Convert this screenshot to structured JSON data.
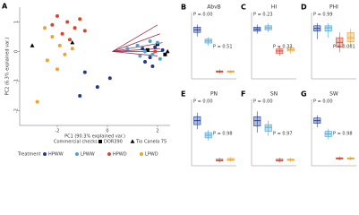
{
  "chart_data": [
    {
      "type": "scatter",
      "label": "A",
      "xlabel": "PC1 (90.3% explained var.)",
      "ylabel": "PC2 (6.3% explained var.)",
      "xlim": [
        -3.5,
        2.5
      ],
      "ylim": [
        -2.5,
        1.5
      ],
      "xticks": [
        -2,
        0,
        2
      ],
      "yticks": [
        -2,
        -1,
        0,
        1
      ],
      "loadings": {
        "color": "#9b2a4a",
        "x": [
          2.0,
          2.1,
          2.2,
          2.1,
          2.2,
          2.0
        ],
        "y": [
          0.9,
          0.6,
          0.3,
          0.1,
          0.0,
          -0.15
        ]
      },
      "series_groups": [
        {
          "title": "Commercial checks",
          "series": [
            {
              "name": "DOR390",
              "color": "#000000",
              "marker": "square",
              "x": [
                1.6,
                2.3,
                2.0
              ],
              "values": [
                0.05,
                -0.1,
                0.25
              ]
            },
            {
              "name": "Tio Canela 75",
              "color": "#000000",
              "marker": "triangle",
              "x": [
                -3.0,
                -1.4,
                2.4
              ],
              "values": [
                0.2,
                0.3,
                0.0
              ]
            }
          ]
        },
        {
          "title": "Treatment",
          "series": [
            {
              "name": "HPWW",
              "color": "#1f3b8f",
              "marker": "circle",
              "x": [
                1.4,
                1.7,
                1.9,
                2.2,
                1.5,
                -0.4,
                -0.9,
                0.1,
                -1.1,
                1.8
              ],
              "values": [
                0.1,
                -0.2,
                0.15,
                0.05,
                -0.35,
                -1.2,
                -0.7,
                -0.9,
                -1.5,
                -0.5
              ]
            },
            {
              "name": "LPWW",
              "color": "#4aa3d4",
              "marker": "circle",
              "x": [
                1.2,
                1.5,
                1.8,
                2.0,
                1.3,
                0.8,
                1.7,
                2.1
              ],
              "values": [
                0.2,
                0.0,
                -0.1,
                0.3,
                -0.15,
                0.1,
                0.35,
                -0.25
              ]
            },
            {
              "name": "HPWD",
              "color": "#d8452b",
              "marker": "circle",
              "x": [
                -2.0,
                -1.6,
                -1.3,
                -1.8,
                -1.1,
                -2.2,
                -1.5,
                -0.9,
                1.9
              ],
              "values": [
                1.2,
                1.0,
                0.8,
                0.6,
                1.1,
                0.9,
                0.4,
                0.7,
                0.0
              ]
            },
            {
              "name": "LPWD",
              "color": "#f0a12e",
              "marker": "circle",
              "x": [
                -2.5,
                -2.2,
                -1.9,
                -1.7,
                -2.4,
                -1.4,
                -2.0,
                -2.8
              ],
              "values": [
                0.8,
                0.5,
                0.2,
                -0.1,
                -0.3,
                0.1,
                -0.6,
                -1.7
              ]
            }
          ]
        }
      ]
    },
    {
      "type": "box",
      "label": "B",
      "title": "AbvB",
      "ylim": [
        0,
        100
      ],
      "annotations": [
        "P = 0.00",
        "P = 0.51"
      ],
      "boxes": [
        {
          "color": "#1f3b8f",
          "stats": [
            64,
            70,
            74,
            78,
            82
          ]
        },
        {
          "color": "#4aa3d4",
          "stats": [
            50,
            54,
            57,
            60,
            63
          ]
        },
        {
          "color": "#d8452b",
          "stats": [
            8,
            10,
            11,
            12,
            14
          ]
        },
        {
          "color": "#f0a12e",
          "stats": [
            8,
            10,
            11,
            12,
            13
          ]
        }
      ]
    },
    {
      "type": "box",
      "label": "C",
      "title": "HI",
      "ylim": [
        0,
        100
      ],
      "annotations": [
        "P = 0.23",
        "P = 0.33"
      ],
      "boxes": [
        {
          "color": "#1f3b8f",
          "stats": [
            68,
            72,
            75,
            78,
            82
          ]
        },
        {
          "color": "#4aa3d4",
          "stats": [
            70,
            74,
            77,
            80,
            84
          ]
        },
        {
          "color": "#d8452b",
          "stats": [
            35,
            38,
            42,
            45,
            48
          ]
        },
        {
          "color": "#f0a12e",
          "stats": [
            38,
            42,
            44,
            47,
            50
          ]
        }
      ]
    },
    {
      "type": "box",
      "label": "D",
      "title": "PHI",
      "ylim": [
        0,
        100
      ],
      "annotations": [
        "P = 0.99",
        "P = 0.001"
      ],
      "boxes": [
        {
          "color": "#1f3b8f",
          "stats": [
            60,
            72,
            76,
            80,
            84
          ]
        },
        {
          "color": "#4aa3d4",
          "stats": [
            62,
            72,
            77,
            80,
            84
          ]
        },
        {
          "color": "#d8452b",
          "stats": [
            40,
            48,
            55,
            62,
            70
          ]
        },
        {
          "color": "#f0a12e",
          "stats": [
            48,
            56,
            62,
            70,
            76
          ]
        }
      ]
    },
    {
      "type": "box",
      "label": "E",
      "title": "PN",
      "ylim": [
        0,
        100
      ],
      "annotations": [
        "P = 0.00",
        "P = 0.98"
      ],
      "boxes": [
        {
          "color": "#1f3b8f",
          "stats": [
            55,
            62,
            68,
            74,
            80
          ]
        },
        {
          "color": "#4aa3d4",
          "stats": [
            38,
            42,
            46,
            50,
            54
          ]
        },
        {
          "color": "#d8452b",
          "stats": [
            5,
            7,
            8,
            10,
            12
          ]
        },
        {
          "color": "#f0a12e",
          "stats": [
            6,
            8,
            9,
            11,
            13
          ]
        }
      ]
    },
    {
      "type": "box",
      "label": "F",
      "title": "SN",
      "ylim": [
        0,
        100
      ],
      "annotations": [
        "P = 0.00",
        "P = 0.97"
      ],
      "boxes": [
        {
          "color": "#1f3b8f",
          "stats": [
            50,
            60,
            68,
            74,
            82
          ]
        },
        {
          "color": "#4aa3d4",
          "stats": [
            45,
            52,
            58,
            62,
            68
          ]
        },
        {
          "color": "#d8452b",
          "stats": [
            5,
            7,
            8,
            10,
            12
          ]
        },
        {
          "color": "#f0a12e",
          "stats": [
            6,
            8,
            9,
            10,
            12
          ]
        }
      ]
    },
    {
      "type": "box",
      "label": "G",
      "title": "SW",
      "ylim": [
        0,
        100
      ],
      "annotations": [
        "P = 0.00",
        "P = 0.98"
      ],
      "boxes": [
        {
          "color": "#1f3b8f",
          "stats": [
            58,
            64,
            68,
            72,
            76
          ]
        },
        {
          "color": "#4aa3d4",
          "stats": [
            40,
            44,
            48,
            52,
            56
          ]
        },
        {
          "color": "#d8452b",
          "stats": [
            8,
            10,
            11,
            12,
            14
          ]
        },
        {
          "color": "#f0a12e",
          "stats": [
            8,
            10,
            11,
            12,
            14
          ]
        }
      ]
    }
  ]
}
